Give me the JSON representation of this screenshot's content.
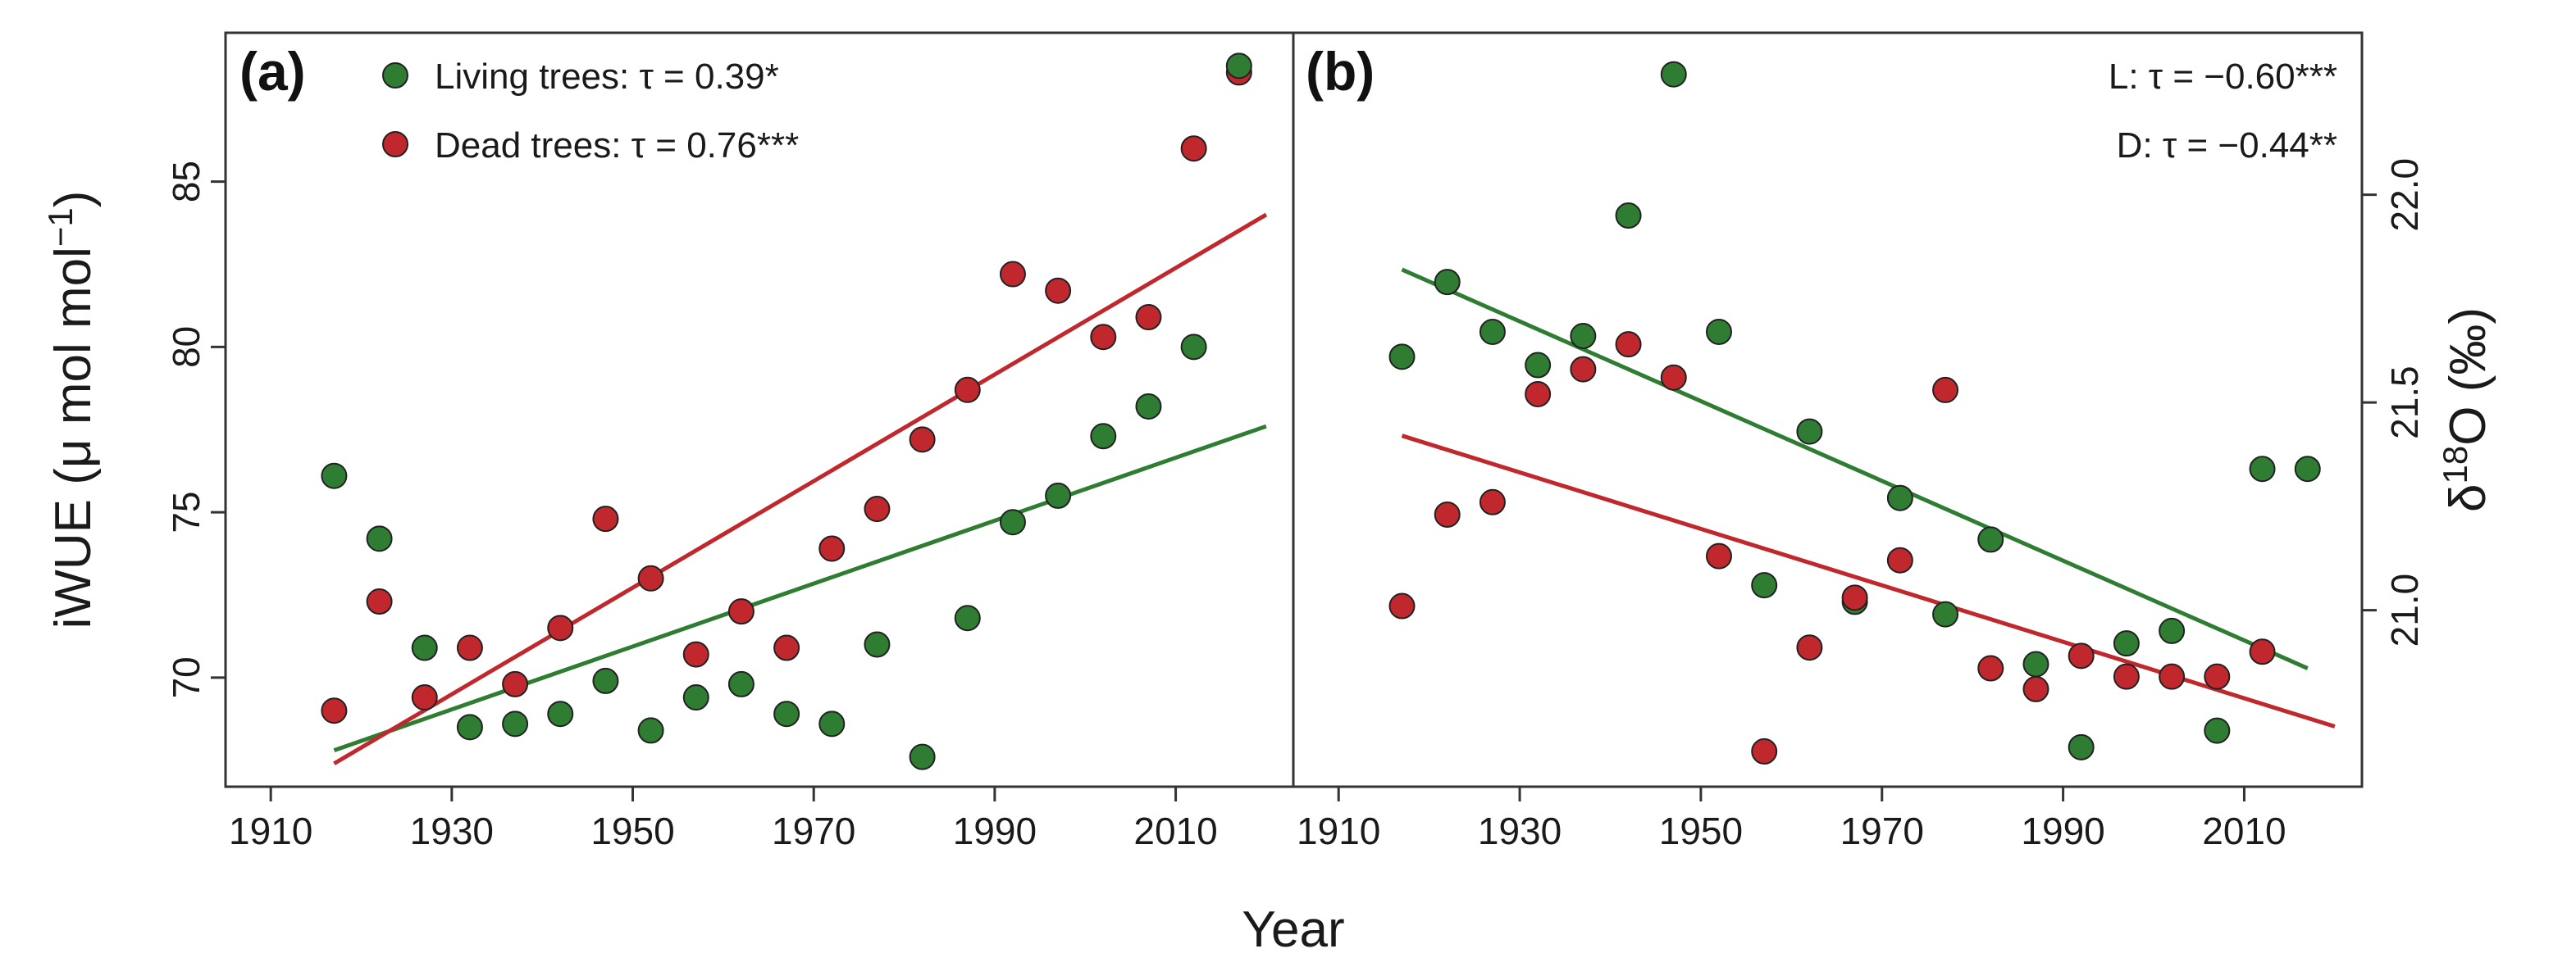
{
  "colors": {
    "living": "#2e7d32",
    "dead": "#c0282d",
    "point_stroke": "#222222",
    "axis": "#333333"
  },
  "figure": {
    "xlabel": "Year"
  },
  "chart_data": [
    {
      "type": "scatter",
      "panel_label": "(a)",
      "ylabel": {
        "main": "iWUE (μ mol mol",
        "sup": "−1",
        "close": ")"
      },
      "y_axis_side": "left",
      "xlim": [
        1905,
        2023
      ],
      "ylim": [
        66.7,
        89.5
      ],
      "x_ticks": [
        1910,
        1930,
        1950,
        1970,
        1990,
        2010
      ],
      "x_tick_labels": [
        "1910",
        "1930",
        "1950",
        "1970",
        "1990",
        "2010"
      ],
      "y_ticks": [
        70,
        75,
        80,
        85
      ],
      "y_tick_labels": [
        "70",
        "75",
        "80",
        "85"
      ],
      "legend": [
        {
          "series": "living",
          "label": "Living trees: τ = 0.39*"
        },
        {
          "series": "dead",
          "label": "Dead trees: τ = 0.76***"
        }
      ],
      "series": [
        {
          "name": "living",
          "points": [
            [
              1917,
              76.1
            ],
            [
              1922,
              74.2
            ],
            [
              1927,
              70.9
            ],
            [
              1932,
              68.5
            ],
            [
              1937,
              68.6
            ],
            [
              1942,
              68.9
            ],
            [
              1947,
              69.9
            ],
            [
              1952,
              68.4
            ],
            [
              1957,
              69.4
            ],
            [
              1962,
              69.8
            ],
            [
              1967,
              68.9
            ],
            [
              1972,
              68.6
            ],
            [
              1977,
              71.0
            ],
            [
              1982,
              67.6
            ],
            [
              1987,
              71.8
            ],
            [
              1992,
              74.7
            ],
            [
              1997,
              75.5
            ],
            [
              2002,
              77.3
            ],
            [
              2007,
              78.2
            ],
            [
              2012,
              80.0
            ],
            [
              2017,
              88.5
            ]
          ],
          "trend": [
            [
              1917,
              67.8
            ],
            [
              2020,
              77.6
            ]
          ]
        },
        {
          "name": "dead",
          "points": [
            [
              1917,
              69.0
            ],
            [
              1922,
              72.3
            ],
            [
              1927,
              69.4
            ],
            [
              1932,
              70.9
            ],
            [
              1937,
              69.8
            ],
            [
              1942,
              71.5
            ],
            [
              1947,
              74.8
            ],
            [
              1952,
              73.0
            ],
            [
              1957,
              70.7
            ],
            [
              1962,
              72.0
            ],
            [
              1967,
              70.9
            ],
            [
              1972,
              73.9
            ],
            [
              1977,
              75.1
            ],
            [
              1982,
              77.2
            ],
            [
              1987,
              78.7
            ],
            [
              1992,
              82.2
            ],
            [
              1997,
              81.7
            ],
            [
              2002,
              80.3
            ],
            [
              2007,
              80.9
            ],
            [
              2012,
              86.0
            ],
            [
              2017,
              88.3
            ]
          ],
          "trend": [
            [
              1917,
              67.4
            ],
            [
              2020,
              84.0
            ]
          ]
        }
      ]
    },
    {
      "type": "scatter",
      "panel_label": "(b)",
      "ylabel": {
        "pre": "δ",
        "sup": "18",
        "post": "O (‰)"
      },
      "y_axis_side": "right",
      "xlim": [
        1905,
        2023
      ],
      "ylim": [
        20.575,
        22.39
      ],
      "x_ticks": [
        1910,
        1930,
        1950,
        1970,
        1990,
        2010
      ],
      "x_tick_labels": [
        "1910",
        "1930",
        "1950",
        "1970",
        "1990",
        "2010"
      ],
      "y_ticks": [
        21.0,
        21.5,
        22.0
      ],
      "y_tick_labels": [
        "21.0",
        "21.5",
        "22.0"
      ],
      "annotations": [
        "L: τ = −0.60***",
        "D: τ = −0.44**"
      ],
      "series": [
        {
          "name": "living",
          "points": [
            [
              1917,
              21.61
            ],
            [
              1922,
              21.79
            ],
            [
              1927,
              21.67
            ],
            [
              1932,
              21.59
            ],
            [
              1937,
              21.66
            ],
            [
              1942,
              21.95
            ],
            [
              1947,
              22.29
            ],
            [
              1952,
              21.67
            ],
            [
              1957,
              21.06
            ],
            [
              1962,
              21.43
            ],
            [
              1967,
              21.02
            ],
            [
              1972,
              21.27
            ],
            [
              1977,
              20.99
            ],
            [
              1982,
              21.17
            ],
            [
              1987,
              20.87
            ],
            [
              1992,
              20.67
            ],
            [
              1997,
              20.92
            ],
            [
              2002,
              20.95
            ],
            [
              2007,
              20.71
            ],
            [
              2012,
              21.34
            ],
            [
              2017,
              21.34
            ]
          ],
          "trend": [
            [
              1917,
              21.82
            ],
            [
              2017,
              20.86
            ]
          ]
        },
        {
          "name": "dead",
          "points": [
            [
              1917,
              21.01
            ],
            [
              1922,
              21.23
            ],
            [
              1927,
              21.26
            ],
            [
              1932,
              21.52
            ],
            [
              1937,
              21.58
            ],
            [
              1942,
              21.64
            ],
            [
              1947,
              21.56
            ],
            [
              1952,
              21.13
            ],
            [
              1957,
              20.66
            ],
            [
              1962,
              20.91
            ],
            [
              1967,
              21.03
            ],
            [
              1972,
              21.12
            ],
            [
              1977,
              21.53
            ],
            [
              1982,
              20.86
            ],
            [
              1987,
              20.81
            ],
            [
              1992,
              20.89
            ],
            [
              1997,
              20.84
            ],
            [
              2002,
              20.84
            ],
            [
              2007,
              20.84
            ],
            [
              2012,
              20.9
            ]
          ],
          "trend": [
            [
              1917,
              21.42
            ],
            [
              2020,
              20.72
            ]
          ]
        }
      ]
    }
  ]
}
